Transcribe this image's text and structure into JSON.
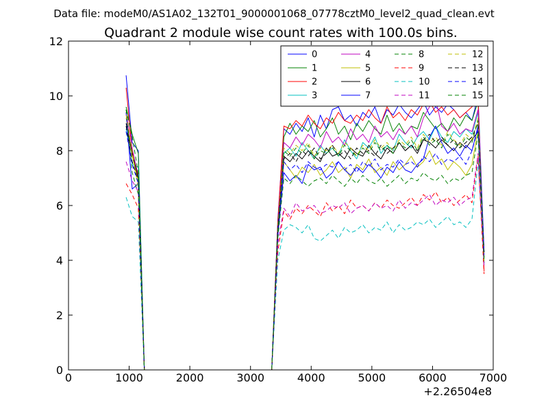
{
  "figure": {
    "suptitle": "Data file: modeM0/AS1A02_132T01_9000001068_07778cztM0_level2_quad_clean.evt",
    "offset_label": "+2.26504e8"
  },
  "chart_data": {
    "type": "line",
    "title": "Quadrant 2 module wise count rates with 100.0s bins.",
    "xlabel": "",
    "ylabel": "",
    "xlim": [
      0,
      7000
    ],
    "ylim": [
      0,
      12
    ],
    "x_ticks": [
      "0",
      "1000",
      "2000",
      "3000",
      "4000",
      "5000",
      "6000",
      "7000"
    ],
    "y_ticks": [
      "0",
      "2",
      "4",
      "6",
      "8",
      "10",
      "12"
    ],
    "grid": false,
    "legend_position": "top-right",
    "legend_columns": 4,
    "x_offset": "+2.26504e8",
    "x": [
      950,
      1050,
      1150,
      1250,
      1350,
      1450,
      1550,
      1650,
      1750,
      1850,
      1950,
      2050,
      2150,
      2250,
      2350,
      2450,
      2550,
      2650,
      2750,
      2850,
      2950,
      3050,
      3150,
      3250,
      3350,
      3450,
      3550,
      3650,
      3750,
      3850,
      3950,
      4050,
      4150,
      4250,
      4350,
      4450,
      4550,
      4650,
      4750,
      4850,
      4950,
      5050,
      5150,
      5250,
      5350,
      5450,
      5550,
      5650,
      5750,
      5850,
      5950,
      6050,
      6150,
      6250,
      6350,
      6450,
      6550,
      6650,
      6750,
      6850
    ],
    "series": [
      {
        "name": "0",
        "color": "#0000ff",
        "dash": "solid",
        "values": [
          10.75,
          8.3,
          8.0,
          0.0,
          0.0,
          0.0,
          0.0,
          0.0,
          0.0,
          0.0,
          0.0,
          0.0,
          0.0,
          0.0,
          0.0,
          0.0,
          0.0,
          0.0,
          0.0,
          0.0,
          0.0,
          0.0,
          0.0,
          0.0,
          0.0,
          5.5,
          8.8,
          8.6,
          9.0,
          8.7,
          9.2,
          8.5,
          9.3,
          8.8,
          9.5,
          9.6,
          9.1,
          9.3,
          8.9,
          9.4,
          9.2,
          9.6,
          9.0,
          9.5,
          9.3,
          9.7,
          9.4,
          9.2,
          9.5,
          9.8,
          9.3,
          9.6,
          9.4,
          9.7,
          9.5,
          9.2,
          9.4,
          9.1,
          10.0,
          4.3
        ]
      },
      {
        "name": "1",
        "color": "#008000",
        "dash": "solid",
        "values": [
          9.6,
          8.6,
          7.9,
          0.0,
          0.0,
          0.0,
          0.0,
          0.0,
          0.0,
          0.0,
          0.0,
          0.0,
          0.0,
          0.0,
          0.0,
          0.0,
          0.0,
          0.0,
          0.0,
          0.0,
          0.0,
          0.0,
          0.0,
          0.0,
          0.0,
          5.3,
          8.5,
          9.0,
          8.6,
          8.9,
          8.7,
          9.1,
          8.5,
          8.8,
          9.2,
          8.6,
          8.9,
          8.4,
          9.0,
          8.7,
          9.1,
          8.8,
          8.6,
          9.3,
          8.7,
          9.0,
          8.6,
          8.9,
          8.8,
          9.4,
          9.1,
          8.8,
          9.0,
          8.7,
          9.2,
          8.9,
          9.3,
          9.1,
          9.8,
          4.1
        ]
      },
      {
        "name": "2",
        "color": "#ff0000",
        "dash": "solid",
        "values": [
          10.3,
          8.0,
          7.1,
          0.0,
          0.0,
          0.0,
          0.0,
          0.0,
          0.0,
          0.0,
          0.0,
          0.0,
          0.0,
          0.0,
          0.0,
          0.0,
          0.0,
          0.0,
          0.0,
          0.0,
          0.0,
          0.0,
          0.0,
          0.0,
          0.0,
          5.4,
          8.9,
          8.8,
          9.1,
          8.9,
          9.3,
          9.0,
          8.8,
          9.2,
          9.0,
          9.4,
          9.1,
          9.0,
          9.3,
          9.1,
          9.5,
          9.2,
          9.0,
          9.6,
          9.2,
          9.4,
          9.1,
          9.5,
          9.3,
          9.7,
          9.8,
          9.4,
          9.6,
          9.3,
          9.5,
          9.2,
          9.4,
          9.6,
          9.9,
          3.6
        ]
      },
      {
        "name": "3",
        "color": "#00bfbf",
        "dash": "solid",
        "values": [
          8.8,
          7.5,
          7.4,
          0.0,
          0.0,
          0.0,
          0.0,
          0.0,
          0.0,
          0.0,
          0.0,
          0.0,
          0.0,
          0.0,
          0.0,
          0.0,
          0.0,
          0.0,
          0.0,
          0.0,
          0.0,
          0.0,
          0.0,
          0.0,
          0.0,
          5.0,
          7.9,
          8.1,
          7.8,
          8.3,
          8.0,
          7.7,
          8.2,
          7.9,
          8.1,
          7.8,
          8.4,
          8.0,
          7.7,
          8.3,
          8.1,
          8.5,
          7.9,
          8.2,
          8.0,
          8.6,
          8.3,
          8.1,
          8.5,
          8.7,
          8.4,
          8.9,
          8.5,
          8.3,
          8.7,
          8.5,
          8.8,
          8.6,
          9.4,
          4.0
        ]
      },
      {
        "name": "4",
        "color": "#bf00bf",
        "dash": "solid",
        "values": [
          9.4,
          8.1,
          7.0,
          0.0,
          0.0,
          0.0,
          0.0,
          0.0,
          0.0,
          0.0,
          0.0,
          0.0,
          0.0,
          0.0,
          0.0,
          0.0,
          0.0,
          0.0,
          0.0,
          0.0,
          0.0,
          0.0,
          0.0,
          0.0,
          0.0,
          5.2,
          8.3,
          8.1,
          8.5,
          8.2,
          8.6,
          8.4,
          8.1,
          8.7,
          8.3,
          8.5,
          8.2,
          8.8,
          8.4,
          8.6,
          8.3,
          8.9,
          8.5,
          8.7,
          8.4,
          8.8,
          8.6,
          8.9,
          8.5,
          9.2,
          9.6,
          9.9,
          8.9,
          8.7,
          9.0,
          8.6,
          8.8,
          8.7,
          9.5,
          4.2
        ]
      },
      {
        "name": "5",
        "color": "#bfbf00",
        "dash": "solid",
        "values": [
          9.2,
          7.8,
          6.9,
          0.0,
          0.0,
          0.0,
          0.0,
          0.0,
          0.0,
          0.0,
          0.0,
          0.0,
          0.0,
          0.0,
          0.0,
          0.0,
          0.0,
          0.0,
          0.0,
          0.0,
          0.0,
          0.0,
          0.0,
          0.0,
          0.0,
          5.0,
          7.6,
          7.3,
          7.0,
          7.4,
          7.2,
          7.5,
          7.1,
          7.3,
          7.6,
          7.2,
          7.4,
          7.0,
          7.5,
          7.3,
          7.7,
          7.2,
          7.4,
          7.1,
          7.6,
          7.3,
          7.5,
          7.8,
          7.4,
          7.6,
          8.0,
          7.5,
          7.7,
          7.3,
          7.6,
          7.4,
          7.1,
          7.5,
          8.8,
          4.1
        ]
      },
      {
        "name": "6",
        "color": "#000000",
        "dash": "solid",
        "values": [
          9.0,
          7.9,
          7.0,
          0.0,
          0.0,
          0.0,
          0.0,
          0.0,
          0.0,
          0.0,
          0.0,
          0.0,
          0.0,
          0.0,
          0.0,
          0.0,
          0.0,
          0.0,
          0.0,
          0.0,
          0.0,
          0.0,
          0.0,
          0.0,
          0.0,
          5.1,
          7.8,
          7.6,
          7.9,
          7.7,
          8.0,
          7.8,
          7.6,
          8.1,
          7.8,
          7.9,
          7.7,
          8.1,
          7.9,
          7.8,
          8.2,
          7.9,
          7.7,
          8.1,
          7.9,
          8.3,
          8.0,
          8.2,
          7.9,
          8.4,
          8.3,
          8.1,
          8.4,
          8.2,
          8.0,
          8.3,
          8.1,
          8.4,
          8.7,
          4.3
        ]
      },
      {
        "name": "7",
        "color": "#0000ff",
        "dash": "solid",
        "values": [
          9.4,
          6.6,
          6.8,
          0.0,
          0.0,
          0.0,
          0.0,
          0.0,
          0.0,
          0.0,
          0.0,
          0.0,
          0.0,
          0.0,
          0.0,
          0.0,
          0.0,
          0.0,
          0.0,
          0.0,
          0.0,
          0.0,
          0.0,
          0.0,
          0.0,
          4.9,
          7.2,
          6.9,
          7.1,
          6.8,
          7.5,
          7.3,
          7.4,
          7.0,
          7.2,
          7.6,
          7.3,
          7.1,
          7.4,
          7.2,
          7.5,
          7.3,
          7.0,
          7.4,
          7.2,
          7.6,
          7.3,
          7.2,
          7.5,
          7.7,
          8.5,
          8.9,
          8.3,
          7.9,
          8.1,
          7.8,
          8.2,
          8.0,
          8.9,
          4.3
        ]
      },
      {
        "name": "8",
        "color": "#008000",
        "dash": "dashed",
        "values": [
          9.5,
          7.2,
          6.4,
          0.0,
          0.0,
          0.0,
          0.0,
          0.0,
          0.0,
          0.0,
          0.0,
          0.0,
          0.0,
          0.0,
          0.0,
          0.0,
          0.0,
          0.0,
          0.0,
          0.0,
          0.0,
          0.0,
          0.0,
          0.0,
          0.0,
          4.8,
          7.0,
          6.8,
          7.1,
          6.9,
          6.7,
          6.9,
          7.0,
          6.8,
          7.1,
          6.9,
          6.7,
          7.0,
          6.8,
          7.1,
          6.9,
          6.8,
          7.0,
          6.7,
          6.9,
          7.1,
          6.8,
          7.0,
          6.9,
          7.2,
          7.0,
          6.9,
          7.1,
          6.8,
          7.0,
          6.9,
          7.1,
          7.2,
          8.6,
          3.9
        ]
      },
      {
        "name": "9",
        "color": "#ff0000",
        "dash": "dashed",
        "values": [
          6.8,
          6.4,
          5.9,
          0.0,
          0.0,
          0.0,
          0.0,
          0.0,
          0.0,
          0.0,
          0.0,
          0.0,
          0.0,
          0.0,
          0.0,
          0.0,
          0.0,
          0.0,
          0.0,
          0.0,
          0.0,
          0.0,
          0.0,
          0.0,
          0.0,
          4.3,
          5.8,
          5.5,
          5.9,
          5.7,
          6.0,
          5.8,
          5.6,
          6.1,
          5.8,
          6.0,
          5.7,
          6.2,
          5.9,
          6.0,
          5.8,
          6.1,
          5.9,
          6.2,
          6.0,
          5.9,
          6.1,
          6.3,
          6.0,
          6.4,
          6.2,
          6.5,
          6.1,
          6.3,
          6.0,
          6.2,
          6.4,
          6.1,
          7.8,
          3.5
        ]
      },
      {
        "name": "10",
        "color": "#00bfbf",
        "dash": "dashed",
        "values": [
          6.3,
          5.6,
          5.4,
          0.0,
          0.0,
          0.0,
          0.0,
          0.0,
          0.0,
          0.0,
          0.0,
          0.0,
          0.0,
          0.0,
          0.0,
          0.0,
          0.0,
          0.0,
          0.0,
          0.0,
          0.0,
          0.0,
          0.0,
          0.0,
          0.0,
          4.0,
          5.1,
          5.3,
          5.2,
          5.0,
          5.3,
          4.8,
          4.7,
          4.9,
          5.1,
          4.8,
          5.2,
          5.0,
          5.1,
          5.3,
          5.0,
          5.2,
          5.1,
          5.4,
          5.0,
          5.3,
          5.1,
          5.2,
          5.4,
          5.3,
          5.5,
          5.2,
          5.4,
          5.6,
          5.3,
          5.4,
          5.2,
          5.5,
          7.6,
          3.9
        ]
      },
      {
        "name": "11",
        "color": "#bf00bf",
        "dash": "dashed",
        "values": [
          7.6,
          6.9,
          6.5,
          0.0,
          0.0,
          0.0,
          0.0,
          0.0,
          0.0,
          0.0,
          0.0,
          0.0,
          0.0,
          0.0,
          0.0,
          0.0,
          0.0,
          0.0,
          0.0,
          0.0,
          0.0,
          0.0,
          0.0,
          0.0,
          0.0,
          4.6,
          5.9,
          5.6,
          6.1,
          5.8,
          5.9,
          6.0,
          5.7,
          5.8,
          6.0,
          5.9,
          6.1,
          5.7,
          5.9,
          6.0,
          5.8,
          6.1,
          5.9,
          6.0,
          5.8,
          6.2,
          5.9,
          6.1,
          6.0,
          6.2,
          6.4,
          6.0,
          6.2,
          6.1,
          6.3,
          6.0,
          6.2,
          6.3,
          7.9,
          3.8
        ]
      },
      {
        "name": "12",
        "color": "#bfbf00",
        "dash": "dashed",
        "values": [
          9.3,
          8.0,
          6.6,
          0.0,
          0.0,
          0.0,
          0.0,
          0.0,
          0.0,
          0.0,
          0.0,
          0.0,
          0.0,
          0.0,
          0.0,
          0.0,
          0.0,
          0.0,
          0.0,
          0.0,
          0.0,
          0.0,
          0.0,
          0.0,
          0.0,
          5.2,
          8.1,
          7.9,
          8.2,
          8.0,
          8.3,
          7.8,
          8.1,
          8.0,
          8.2,
          7.9,
          8.3,
          8.1,
          7.8,
          8.2,
          8.0,
          8.4,
          8.1,
          8.3,
          8.0,
          8.4,
          8.2,
          8.5,
          8.1,
          8.6,
          8.3,
          8.5,
          8.2,
          8.7,
          8.4,
          8.2,
          8.6,
          8.4,
          9.2,
          4.0
        ]
      },
      {
        "name": "13",
        "color": "#000000",
        "dash": "dashed",
        "values": [
          8.9,
          7.6,
          6.9,
          0.0,
          0.0,
          0.0,
          0.0,
          0.0,
          0.0,
          0.0,
          0.0,
          0.0,
          0.0,
          0.0,
          0.0,
          0.0,
          0.0,
          0.0,
          0.0,
          0.0,
          0.0,
          0.0,
          0.0,
          0.0,
          0.0,
          5.1,
          7.7,
          7.9,
          7.6,
          8.0,
          7.8,
          8.1,
          7.7,
          7.9,
          8.2,
          7.8,
          8.0,
          7.7,
          8.1,
          7.9,
          8.0,
          7.8,
          8.2,
          7.9,
          8.1,
          8.3,
          8.0,
          8.2,
          8.0,
          8.4,
          8.6,
          8.3,
          8.5,
          8.2,
          8.4,
          8.1,
          8.3,
          8.5,
          9.0,
          4.2
        ]
      },
      {
        "name": "14",
        "color": "#0000ff",
        "dash": "dashed",
        "values": [
          8.7,
          7.5,
          6.8,
          0.0,
          0.0,
          0.0,
          0.0,
          0.0,
          0.0,
          0.0,
          0.0,
          0.0,
          0.0,
          0.0,
          0.0,
          0.0,
          0.0,
          0.0,
          0.0,
          0.0,
          0.0,
          0.0,
          0.0,
          0.0,
          0.0,
          5.0,
          7.6,
          7.3,
          7.5,
          7.2,
          7.6,
          7.4,
          7.3,
          7.5,
          7.4,
          7.6,
          7.3,
          7.5,
          7.2,
          7.6,
          7.4,
          7.7,
          7.3,
          7.5,
          7.4,
          7.7,
          7.5,
          7.6,
          7.4,
          7.8,
          7.6,
          7.9,
          7.5,
          7.7,
          7.6,
          7.8,
          7.5,
          8.0,
          8.8,
          4.1
        ]
      },
      {
        "name": "15",
        "color": "#008000",
        "dash": "dashed",
        "values": [
          9.5,
          8.5,
          7.2,
          0.0,
          0.0,
          0.0,
          0.0,
          0.0,
          0.0,
          0.0,
          0.0,
          0.0,
          0.0,
          0.0,
          0.0,
          0.0,
          0.0,
          0.0,
          0.0,
          0.0,
          0.0,
          0.0,
          0.0,
          0.0,
          0.0,
          5.1,
          8.0,
          7.8,
          8.1,
          7.9,
          8.2,
          7.7,
          8.0,
          7.9,
          8.1,
          7.8,
          8.2,
          8.0,
          7.8,
          8.1,
          7.9,
          8.3,
          8.0,
          8.2,
          7.9,
          8.3,
          8.1,
          8.4,
          8.0,
          8.5,
          8.2,
          8.4,
          8.1,
          8.6,
          8.3,
          8.1,
          8.5,
          8.3,
          9.1,
          4.0
        ]
      }
    ]
  }
}
